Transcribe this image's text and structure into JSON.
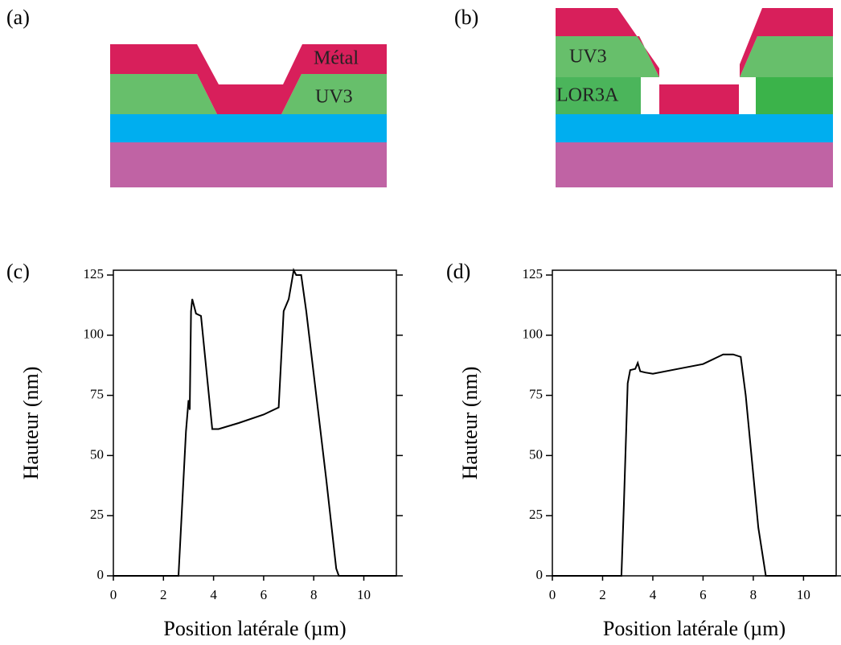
{
  "diagrams": [
    {
      "label": "(a)",
      "layers": [
        "Métal",
        "UV3"
      ]
    },
    {
      "label": "(b)",
      "layers": [
        "UV3",
        "LOR3A"
      ]
    }
  ],
  "chart_data": [
    {
      "type": "line",
      "panel": "(c)",
      "xlabel": "Position latérale (µm)",
      "ylabel": "Hauteur (nm)",
      "color": "#000000",
      "xlim": [
        0,
        11.3
      ],
      "ylim": [
        0,
        127
      ],
      "xticks": [
        0,
        2,
        4,
        6,
        8,
        10
      ],
      "yticks": [
        0,
        25,
        50,
        75,
        100,
        125
      ],
      "x": [
        0,
        2.6,
        2.9,
        3.0,
        3.05,
        3.1,
        3.15,
        3.3,
        3.5,
        3.95,
        4.2,
        5,
        6,
        6.6,
        6.8,
        7.0,
        7.1,
        7.2,
        7.3,
        7.5,
        7.7,
        8.5,
        8.9,
        9.0,
        11.3
      ],
      "values": [
        0,
        0,
        60,
        73,
        69,
        110,
        115,
        109,
        108,
        61,
        61,
        63.5,
        67,
        70,
        110,
        115,
        121,
        127,
        125,
        125,
        110,
        40,
        3,
        0,
        0
      ]
    },
    {
      "type": "line",
      "panel": "(d)",
      "xlabel": "Position latérale (µm)",
      "ylabel": "Hauteur (nm)",
      "color": "#000000",
      "xlim": [
        0,
        11.3
      ],
      "ylim": [
        0,
        127
      ],
      "xticks": [
        0,
        2,
        4,
        6,
        8,
        10
      ],
      "yticks": [
        0,
        25,
        50,
        75,
        100,
        125
      ],
      "x": [
        0,
        2.75,
        2.85,
        3.0,
        3.1,
        3.3,
        3.4,
        3.5,
        3.7,
        4,
        5,
        6,
        6.8,
        7.2,
        7.5,
        7.7,
        8.2,
        8.5,
        11.3
      ],
      "values": [
        0,
        0,
        30,
        80,
        85.5,
        86,
        88.5,
        85,
        84.5,
        84,
        86,
        88,
        92,
        92,
        91,
        75,
        20,
        0,
        0
      ]
    }
  ]
}
